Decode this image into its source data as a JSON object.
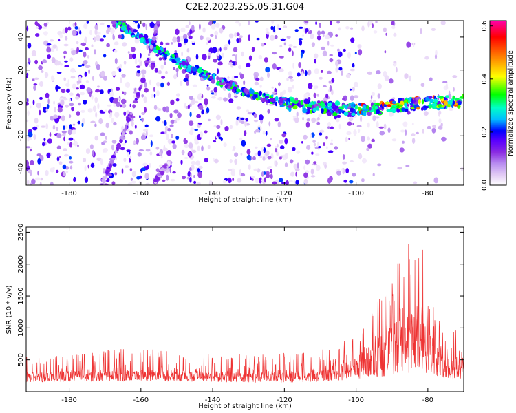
{
  "title": "C2E2.2023.255.05.31.G04",
  "chart_data": [
    {
      "type": "heatmap",
      "xlabel": "Height of straight line (km)",
      "ylabel": "Frequency (Hz)",
      "xlim": [
        -192,
        -70
      ],
      "ylim": [
        -50,
        50
      ],
      "xticks": [
        -180,
        -160,
        -140,
        -120,
        -100,
        -80
      ],
      "yticks": [
        -40,
        -20,
        0,
        20,
        40
      ],
      "colorbar": {
        "label": "Normalized spectral amplitude",
        "range": [
          0.0,
          0.62
        ],
        "ticks": [
          0.0,
          0.2,
          0.4,
          0.6
        ],
        "colormap": [
          "#ffffff",
          "#e3cdf5",
          "#b98ff0",
          "#8a2be2",
          "#5a00ff",
          "#0000ff",
          "#00bfff",
          "#00ffc8",
          "#00ff00",
          "#ffff00",
          "#ff8000",
          "#ff0000",
          "#ff00aa"
        ]
      },
      "features": [
        {
          "kind": "main_trace",
          "points": [
            [
              -168,
              50
            ],
            [
              -160,
              40
            ],
            [
              -150,
              25
            ],
            [
              -140,
              15
            ],
            [
              -130,
              6
            ],
            [
              -120,
              0
            ],
            [
              -110,
              -3
            ],
            [
              -100,
              -4
            ],
            [
              -90,
              -2
            ],
            [
              -80,
              0
            ],
            [
              -70,
              1
            ]
          ],
          "peak_amplitude": 0.6
        },
        {
          "kind": "steep_streak",
          "points": [
            [
              -171,
              -50
            ],
            [
              -165,
              -20
            ],
            [
              -160,
              10
            ],
            [
              -155,
              50
            ]
          ],
          "peak_amplitude": 0.3
        },
        {
          "kind": "steep_streak",
          "points": [
            [
              -156,
              -48
            ],
            [
              -153,
              -38
            ]
          ],
          "peak_amplitude": 0.25
        }
      ]
    },
    {
      "type": "line",
      "xlabel": "Height of straight line (km)",
      "ylabel": "SNR (10 * v/v)",
      "xlim": [
        -192,
        -70
      ],
      "ylim": [
        0,
        2580
      ],
      "xticks": [
        -180,
        -160,
        -140,
        -120,
        -100,
        -80
      ],
      "yticks": [
        500,
        1000,
        1500,
        2000,
        2500
      ],
      "color": "#ee3333",
      "envelope": {
        "x": [
          -192,
          -180,
          -170,
          -160,
          -150,
          -140,
          -130,
          -120,
          -110,
          -105,
          -100,
          -95,
          -90,
          -88,
          -85,
          -83,
          -80,
          -77,
          -74,
          -72,
          -70
        ],
        "baseline": [
          150,
          150,
          160,
          170,
          160,
          150,
          140,
          140,
          150,
          170,
          190,
          220,
          250,
          260,
          270,
          280,
          270,
          240,
          200,
          180,
          160
        ],
        "typical": [
          320,
          320,
          340,
          350,
          330,
          320,
          320,
          330,
          360,
          420,
          550,
          800,
          1050,
          1150,
          1250,
          1350,
          1000,
          700,
          550,
          600,
          650
        ],
        "peaks": [
          560,
          580,
          650,
          700,
          620,
          580,
          600,
          620,
          650,
          750,
          900,
          1300,
          1850,
          2100,
          2450,
          2560,
          2000,
          1150,
          900,
          1100,
          1400
        ]
      }
    }
  ]
}
